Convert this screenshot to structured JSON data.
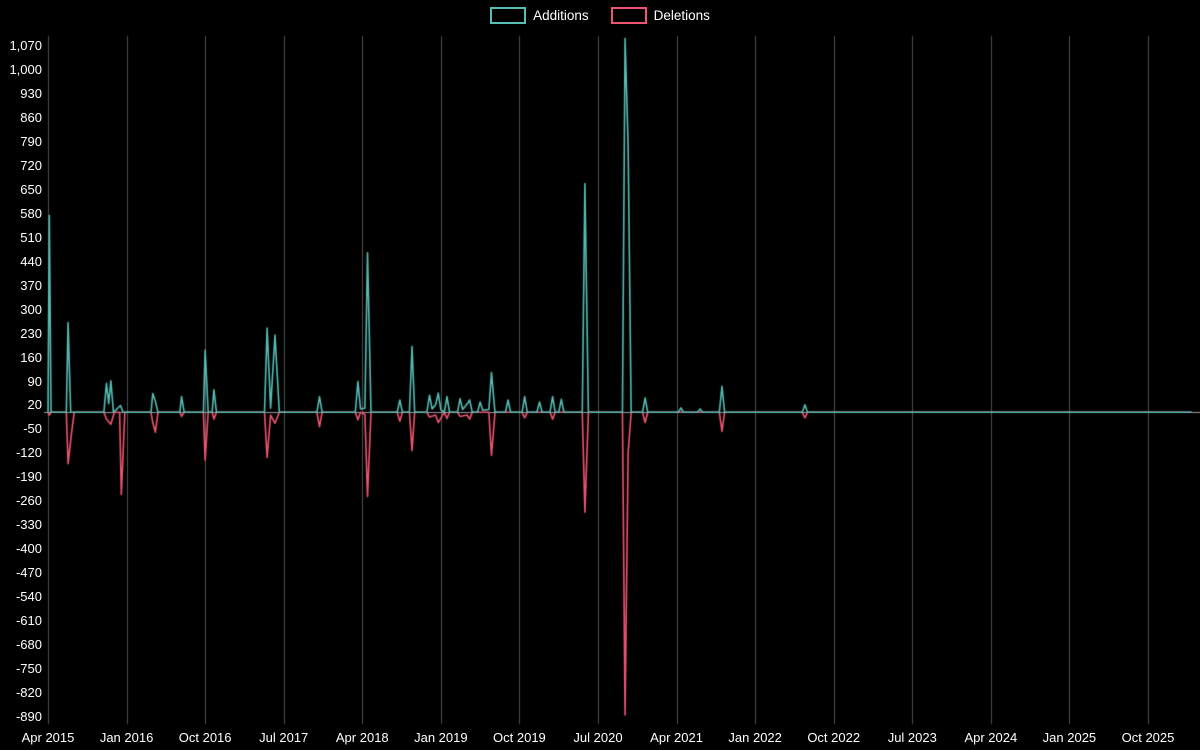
{
  "legend": {
    "items": [
      {
        "label": "Additions",
        "color": "#56beb5"
      },
      {
        "label": "Deletions",
        "color": "#ef5570"
      }
    ]
  },
  "chart_data": {
    "type": "line",
    "title": "",
    "xlabel": "",
    "ylabel": "",
    "grid": {
      "vertical_gridlines": true,
      "horizontal_gridlines": false,
      "zero_line": true
    },
    "legend_position": "top-center",
    "colors": {
      "background": "#000000",
      "grid": "#4f4f4f",
      "zero_line": "#9a9a9a",
      "text": "#ffffff",
      "additions": "#56beb5",
      "deletions": "#ef5570"
    },
    "y_axis": {
      "min": -890,
      "max": 1070,
      "step": 70,
      "tick_labels": [
        "1,070",
        "1,000",
        "930",
        "860",
        "790",
        "720",
        "650",
        "580",
        "510",
        "440",
        "370",
        "300",
        "230",
        "160",
        "90",
        "20",
        "-50",
        "-120",
        "-190",
        "-260",
        "-330",
        "-400",
        "-470",
        "-540",
        "-610",
        "-680",
        "-750",
        "-820",
        "-890"
      ]
    },
    "x_axis": {
      "unit": "months since Apr 2015",
      "ticks": [
        {
          "label": "Apr 2015",
          "month": 0
        },
        {
          "label": "Jan 2016",
          "month": 9
        },
        {
          "label": "Oct 2016",
          "month": 18
        },
        {
          "label": "Jul 2017",
          "month": 27
        },
        {
          "label": "Apr 2018",
          "month": 36
        },
        {
          "label": "Jan 2019",
          "month": 45
        },
        {
          "label": "Oct 2019",
          "month": 54
        },
        {
          "label": "Jul 2020",
          "month": 63
        },
        {
          "label": "Apr 2021",
          "month": 72
        },
        {
          "label": "Jan 2022",
          "month": 81
        },
        {
          "label": "Oct 2022",
          "month": 90
        },
        {
          "label": "Jul 2023",
          "month": 99
        },
        {
          "label": "Apr 2024",
          "month": 108
        },
        {
          "label": "Jan 2025",
          "month": 117
        },
        {
          "label": "Oct 2025",
          "month": 126
        }
      ]
    },
    "series": [
      {
        "name": "Additions",
        "color": "#56beb5",
        "points": [
          [
            0,
            0
          ],
          [
            0.15,
            575
          ],
          [
            0.35,
            0
          ],
          [
            2.1,
            0
          ],
          [
            2.3,
            262
          ],
          [
            2.6,
            0
          ],
          [
            6.4,
            0
          ],
          [
            6.7,
            85
          ],
          [
            6.95,
            25
          ],
          [
            7.2,
            92
          ],
          [
            7.5,
            0
          ],
          [
            8.3,
            20
          ],
          [
            8.6,
            0
          ],
          [
            11.8,
            0
          ],
          [
            12.0,
            55
          ],
          [
            12.3,
            32
          ],
          [
            12.6,
            0
          ],
          [
            15.1,
            0
          ],
          [
            15.3,
            46
          ],
          [
            15.6,
            0
          ],
          [
            17.8,
            0
          ],
          [
            18.0,
            182
          ],
          [
            18.35,
            0
          ],
          [
            18.8,
            0
          ],
          [
            19.0,
            66
          ],
          [
            19.3,
            0
          ],
          [
            24.8,
            0
          ],
          [
            25.1,
            246
          ],
          [
            25.5,
            12
          ],
          [
            26.0,
            226
          ],
          [
            26.5,
            0
          ],
          [
            30.8,
            0
          ],
          [
            31.1,
            46
          ],
          [
            31.4,
            0
          ],
          [
            35.2,
            0
          ],
          [
            35.5,
            90
          ],
          [
            35.8,
            10
          ],
          [
            36.3,
            12
          ],
          [
            36.6,
            466
          ],
          [
            37.0,
            0
          ],
          [
            40.0,
            0
          ],
          [
            40.3,
            36
          ],
          [
            40.6,
            0
          ],
          [
            41.4,
            0
          ],
          [
            41.7,
            192
          ],
          [
            42.0,
            0
          ],
          [
            43.4,
            0
          ],
          [
            43.7,
            50
          ],
          [
            44.0,
            10
          ],
          [
            44.4,
            22
          ],
          [
            44.7,
            56
          ],
          [
            45.0,
            8
          ],
          [
            45.4,
            0
          ],
          [
            45.7,
            46
          ],
          [
            46.0,
            0
          ],
          [
            46.9,
            0
          ],
          [
            47.2,
            40
          ],
          [
            47.5,
            8
          ],
          [
            48.0,
            24
          ],
          [
            48.3,
            36
          ],
          [
            48.6,
            0
          ],
          [
            49.2,
            0
          ],
          [
            49.5,
            30
          ],
          [
            49.8,
            6
          ],
          [
            50.5,
            8
          ],
          [
            50.8,
            116
          ],
          [
            51.2,
            0
          ],
          [
            52.4,
            0
          ],
          [
            52.7,
            36
          ],
          [
            53.0,
            0
          ],
          [
            54.3,
            0
          ],
          [
            54.6,
            46
          ],
          [
            54.9,
            0
          ],
          [
            56.0,
            0
          ],
          [
            56.3,
            30
          ],
          [
            56.6,
            0
          ],
          [
            57.5,
            0
          ],
          [
            57.8,
            46
          ],
          [
            58.1,
            0
          ],
          [
            58.5,
            0
          ],
          [
            58.8,
            38
          ],
          [
            59.1,
            0
          ],
          [
            61.2,
            0
          ],
          [
            61.5,
            668
          ],
          [
            61.9,
            0
          ],
          [
            65.8,
            0
          ],
          [
            66.1,
            1092
          ],
          [
            66.45,
            782
          ],
          [
            66.8,
            0
          ],
          [
            68.1,
            0
          ],
          [
            68.4,
            42
          ],
          [
            68.7,
            0
          ],
          [
            72.2,
            0
          ],
          [
            72.5,
            13
          ],
          [
            72.8,
            0
          ],
          [
            74.4,
            0
          ],
          [
            74.7,
            10
          ],
          [
            75.0,
            0
          ],
          [
            76.9,
            0
          ],
          [
            77.2,
            76
          ],
          [
            77.5,
            0
          ],
          [
            86.4,
            0
          ],
          [
            86.7,
            22
          ],
          [
            87.0,
            0
          ],
          [
            131,
            0
          ]
        ]
      },
      {
        "name": "Deletions",
        "color": "#ef5570",
        "points": [
          [
            0,
            0
          ],
          [
            0.15,
            -8
          ],
          [
            0.35,
            0
          ],
          [
            2.1,
            0
          ],
          [
            2.3,
            -150
          ],
          [
            2.7,
            -60
          ],
          [
            3.0,
            0
          ],
          [
            6.4,
            0
          ],
          [
            6.7,
            -20
          ],
          [
            7.2,
            -35
          ],
          [
            7.6,
            0
          ],
          [
            8.2,
            0
          ],
          [
            8.4,
            -240
          ],
          [
            8.8,
            0
          ],
          [
            11.8,
            0
          ],
          [
            12.0,
            -30
          ],
          [
            12.3,
            -58
          ],
          [
            12.6,
            0
          ],
          [
            15.1,
            0
          ],
          [
            15.3,
            -12
          ],
          [
            15.6,
            0
          ],
          [
            17.8,
            0
          ],
          [
            18.0,
            -140
          ],
          [
            18.35,
            0
          ],
          [
            18.8,
            0
          ],
          [
            19.0,
            -20
          ],
          [
            19.3,
            0
          ],
          [
            24.8,
            0
          ],
          [
            25.1,
            -132
          ],
          [
            25.5,
            -8
          ],
          [
            26.0,
            -32
          ],
          [
            26.5,
            0
          ],
          [
            30.8,
            0
          ],
          [
            31.1,
            -42
          ],
          [
            31.4,
            0
          ],
          [
            35.2,
            0
          ],
          [
            35.5,
            -22
          ],
          [
            35.8,
            0
          ],
          [
            36.3,
            -6
          ],
          [
            36.6,
            -246
          ],
          [
            37.0,
            0
          ],
          [
            40.0,
            0
          ],
          [
            40.3,
            -26
          ],
          [
            40.6,
            0
          ],
          [
            41.4,
            0
          ],
          [
            41.7,
            -112
          ],
          [
            42.0,
            0
          ],
          [
            43.4,
            0
          ],
          [
            43.7,
            -14
          ],
          [
            44.4,
            -8
          ],
          [
            44.7,
            -30
          ],
          [
            45.4,
            0
          ],
          [
            45.7,
            -18
          ],
          [
            46.0,
            0
          ],
          [
            46.9,
            0
          ],
          [
            47.2,
            -12
          ],
          [
            48.0,
            -8
          ],
          [
            48.3,
            -20
          ],
          [
            48.6,
            0
          ],
          [
            50.5,
            0
          ],
          [
            50.8,
            -126
          ],
          [
            51.2,
            0
          ],
          [
            54.3,
            0
          ],
          [
            54.6,
            -16
          ],
          [
            54.9,
            0
          ],
          [
            57.5,
            0
          ],
          [
            57.8,
            -20
          ],
          [
            58.1,
            0
          ],
          [
            61.2,
            0
          ],
          [
            61.5,
            -292
          ],
          [
            61.9,
            0
          ],
          [
            65.8,
            0
          ],
          [
            66.1,
            -884
          ],
          [
            66.45,
            -120
          ],
          [
            66.8,
            0
          ],
          [
            68.1,
            0
          ],
          [
            68.4,
            -30
          ],
          [
            68.7,
            0
          ],
          [
            76.9,
            0
          ],
          [
            77.2,
            -56
          ],
          [
            77.5,
            0
          ],
          [
            86.4,
            0
          ],
          [
            86.7,
            -16
          ],
          [
            87.0,
            0
          ],
          [
            131,
            0
          ]
        ]
      }
    ]
  }
}
